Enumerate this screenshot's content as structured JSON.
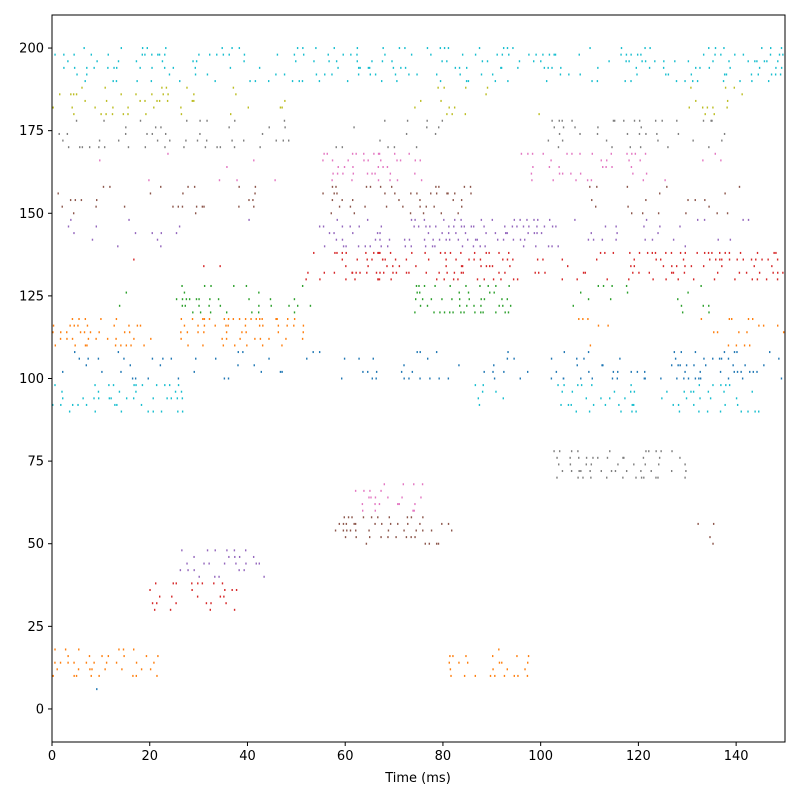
{
  "chart_data": {
    "type": "scatter",
    "title": "",
    "xlabel": "Time (ms)",
    "ylabel": "",
    "xlim": [
      0,
      150
    ],
    "ylim": [
      -10,
      210
    ],
    "xticks": [
      0,
      20,
      40,
      60,
      80,
      100,
      120,
      140
    ],
    "yticks": [
      0,
      25,
      50,
      75,
      100,
      125,
      150,
      175,
      200
    ],
    "grid": false,
    "legend": "none",
    "marker": "dot",
    "colors": {
      "blue": "#1f77b4",
      "orange": "#ff7f0e",
      "green": "#2ca02c",
      "red": "#d62728",
      "purple": "#9467bd",
      "brown": "#8c564b",
      "pink": "#e377c2",
      "gray": "#7f7f7f",
      "olive": "#bcbd22",
      "cyan": "#17becf"
    },
    "bursts": [
      {
        "color": "cyan",
        "neurons": [
          190,
          200
        ],
        "time": [
          0,
          150
        ],
        "density": 0.28
      },
      {
        "color": "olive",
        "neurons": [
          180,
          189
        ],
        "time": [
          0,
          30
        ],
        "density": 0.2
      },
      {
        "color": "olive",
        "neurons": [
          180,
          189
        ],
        "time": [
          35,
          48
        ],
        "density": 0.1
      },
      {
        "color": "olive",
        "neurons": [
          180,
          189
        ],
        "time": [
          72,
          86
        ],
        "density": 0.22
      },
      {
        "color": "olive",
        "neurons": [
          180,
          189
        ],
        "time": [
          88,
          102
        ],
        "density": 0.07
      },
      {
        "color": "olive",
        "neurons": [
          180,
          189
        ],
        "time": [
          130,
          142
        ],
        "density": 0.15
      },
      {
        "color": "gray",
        "neurons": [
          170,
          179
        ],
        "time": [
          0,
          50
        ],
        "density": 0.2
      },
      {
        "color": "gray",
        "neurons": [
          170,
          179
        ],
        "time": [
          58,
          80
        ],
        "density": 0.1
      },
      {
        "color": "gray",
        "neurons": [
          170,
          179
        ],
        "time": [
          100,
          140
        ],
        "density": 0.17
      },
      {
        "color": "pink",
        "neurons": [
          160,
          169
        ],
        "time": [
          0,
          50
        ],
        "density": 0.06
      },
      {
        "color": "pink",
        "neurons": [
          160,
          169
        ],
        "time": [
          54,
          76
        ],
        "density": 0.38
      },
      {
        "color": "pink",
        "neurons": [
          160,
          169
        ],
        "time": [
          96,
          122
        ],
        "density": 0.28
      },
      {
        "color": "pink",
        "neurons": [
          160,
          169
        ],
        "time": [
          122,
          140
        ],
        "density": 0.07
      },
      {
        "color": "brown",
        "neurons": [
          150,
          159
        ],
        "time": [
          0,
          42
        ],
        "density": 0.14
      },
      {
        "color": "brown",
        "neurons": [
          150,
          159
        ],
        "time": [
          55,
          86
        ],
        "density": 0.3
      },
      {
        "color": "brown",
        "neurons": [
          150,
          159
        ],
        "time": [
          110,
          142
        ],
        "density": 0.12
      },
      {
        "color": "purple",
        "neurons": [
          140,
          149
        ],
        "time": [
          0,
          42
        ],
        "density": 0.07
      },
      {
        "color": "purple",
        "neurons": [
          140,
          149
        ],
        "time": [
          54,
          80
        ],
        "density": 0.3
      },
      {
        "color": "purple",
        "neurons": [
          140,
          149
        ],
        "time": [
          80,
          104
        ],
        "density": 0.45
      },
      {
        "color": "purple",
        "neurons": [
          140,
          149
        ],
        "time": [
          104,
          144
        ],
        "density": 0.09
      },
      {
        "color": "red",
        "neurons": [
          130,
          139
        ],
        "time": [
          0,
          50
        ],
        "density": 0.03
      },
      {
        "color": "red",
        "neurons": [
          130,
          139
        ],
        "time": [
          52,
          70
        ],
        "density": 0.18
      },
      {
        "color": "red",
        "neurons": [
          130,
          139
        ],
        "time": [
          60,
          98
        ],
        "density": 0.4
      },
      {
        "color": "red",
        "neurons": [
          130,
          139
        ],
        "time": [
          98,
          118
        ],
        "density": 0.1
      },
      {
        "color": "red",
        "neurons": [
          130,
          139
        ],
        "time": [
          118,
          150
        ],
        "density": 0.42
      },
      {
        "color": "green",
        "neurons": [
          120,
          129
        ],
        "time": [
          0,
          22
        ],
        "density": 0.04
      },
      {
        "color": "green",
        "neurons": [
          120,
          129
        ],
        "time": [
          24,
          55
        ],
        "density": 0.2
      },
      {
        "color": "green",
        "neurons": [
          120,
          129
        ],
        "time": [
          74,
          94
        ],
        "density": 0.48
      },
      {
        "color": "green",
        "neurons": [
          120,
          129
        ],
        "time": [
          106,
          120
        ],
        "density": 0.2
      },
      {
        "color": "green",
        "neurons": [
          120,
          129
        ],
        "time": [
          126,
          136
        ],
        "density": 0.1
      },
      {
        "color": "orange",
        "neurons": [
          110,
          119
        ],
        "time": [
          0,
          18
        ],
        "density": 0.3
      },
      {
        "color": "orange",
        "neurons": [
          110,
          119
        ],
        "time": [
          18,
          26
        ],
        "density": 0.07
      },
      {
        "color": "orange",
        "neurons": [
          110,
          119
        ],
        "time": [
          26,
          52
        ],
        "density": 0.4
      },
      {
        "color": "orange",
        "neurons": [
          110,
          119
        ],
        "time": [
          106,
          116
        ],
        "density": 0.1
      },
      {
        "color": "orange",
        "neurons": [
          110,
          119
        ],
        "time": [
          132,
          150
        ],
        "density": 0.2
      },
      {
        "color": "blue",
        "neurons": [
          100,
          109
        ],
        "time": [
          0,
          150
        ],
        "density": 0.13
      },
      {
        "color": "blue",
        "neurons": [
          100,
          109
        ],
        "time": [
          104,
          126
        ],
        "density": 0.15
      },
      {
        "color": "blue",
        "neurons": [
          100,
          109
        ],
        "time": [
          126,
          150
        ],
        "density": 0.2
      },
      {
        "color": "cyan",
        "neurons": [
          90,
          99
        ],
        "time": [
          0,
          28
        ],
        "density": 0.32
      },
      {
        "color": "cyan",
        "neurons": [
          90,
          99
        ],
        "time": [
          86,
          94
        ],
        "density": 0.1
      },
      {
        "color": "cyan",
        "neurons": [
          90,
          99
        ],
        "time": [
          103,
          120
        ],
        "density": 0.3
      },
      {
        "color": "cyan",
        "neurons": [
          90,
          99
        ],
        "time": [
          124,
          145
        ],
        "density": 0.35
      },
      {
        "color": "gray",
        "neurons": [
          70,
          79
        ],
        "time": [
          102,
          130
        ],
        "density": 0.4
      },
      {
        "color": "pink",
        "neurons": [
          60,
          69
        ],
        "time": [
          62,
          76
        ],
        "density": 0.28
      },
      {
        "color": "brown",
        "neurons": [
          50,
          59
        ],
        "time": [
          58,
          82
        ],
        "density": 0.36
      },
      {
        "color": "brown",
        "neurons": [
          50,
          59
        ],
        "time": [
          132,
          138
        ],
        "density": 0.1
      },
      {
        "color": "purple",
        "neurons": [
          40,
          49
        ],
        "time": [
          26,
          44
        ],
        "density": 0.32
      },
      {
        "color": "red",
        "neurons": [
          30,
          39
        ],
        "time": [
          20,
          38
        ],
        "density": 0.3
      },
      {
        "color": "orange",
        "neurons": [
          10,
          19
        ],
        "time": [
          0,
          22
        ],
        "density": 0.34
      },
      {
        "color": "orange",
        "neurons": [
          10,
          19
        ],
        "time": [
          81,
          98
        ],
        "density": 0.36
      },
      {
        "color": "blue",
        "neurons": [
          0,
          9
        ],
        "time": [
          0,
          12
        ],
        "density": 0.02
      }
    ]
  }
}
